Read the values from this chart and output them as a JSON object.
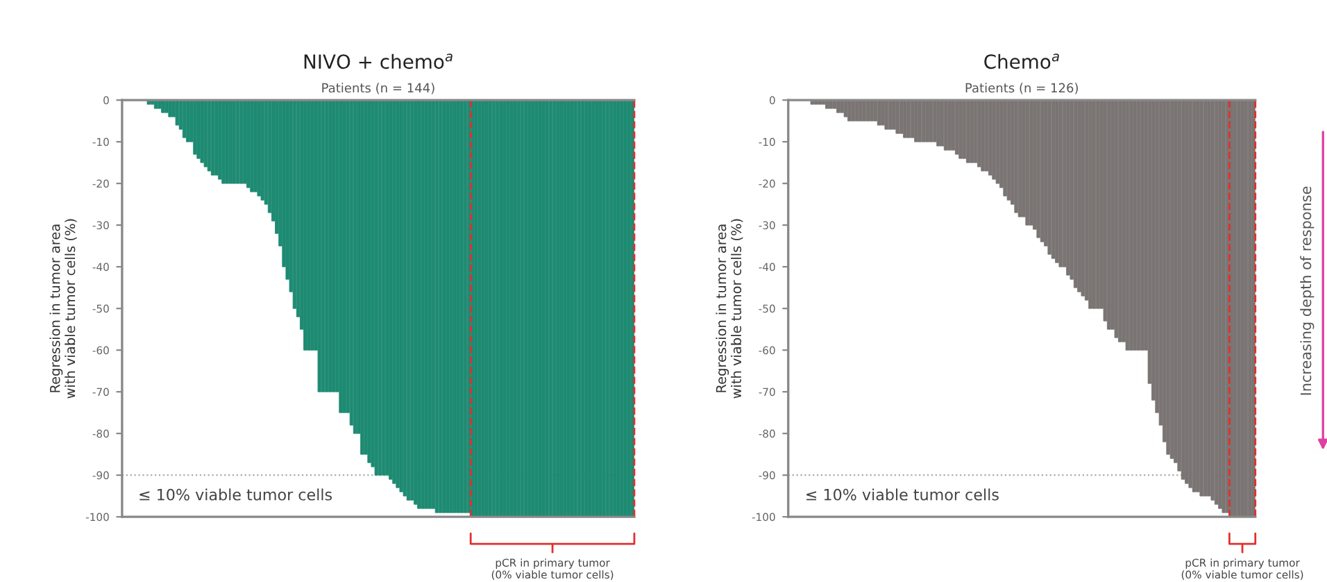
{
  "chart_data": [
    {
      "type": "bar",
      "title": "NIVO + chemo$^{a}$",
      "subtitle": "Patients (n = 144)",
      "ylabel": "Regression in tumor area\nwith viable tumor cells (%)",
      "color": "#1e8a72",
      "tick_labels": "y",
      "categories": [
        null,
        null,
        null,
        null,
        null,
        null,
        null,
        null,
        null,
        null,
        null,
        null,
        null,
        null,
        null,
        null,
        null,
        null,
        null,
        null,
        null,
        null,
        null,
        null,
        null,
        null,
        null,
        null,
        null,
        null,
        null,
        null,
        null,
        null,
        null,
        null,
        null,
        null,
        null,
        null,
        null,
        null,
        null,
        null,
        null,
        null,
        null,
        null,
        null,
        null,
        null,
        null,
        null,
        null,
        null,
        null,
        null,
        null,
        null,
        null,
        null,
        null,
        null,
        null,
        null,
        null,
        null,
        null,
        null,
        null,
        null,
        null,
        null,
        null,
        null,
        null,
        null,
        null,
        null,
        null,
        null,
        null,
        null,
        null,
        null,
        null,
        null,
        null,
        null,
        null,
        null,
        null,
        null,
        null,
        null,
        null,
        null,
        null,
        null,
        null,
        null,
        null,
        null,
        null,
        null,
        null,
        null,
        null,
        null,
        null,
        null,
        null,
        null,
        null,
        null,
        null,
        null,
        null,
        null,
        null,
        null,
        null,
        null,
        null,
        null,
        null,
        null,
        null,
        null,
        null,
        null,
        null,
        null,
        null,
        null,
        null,
        null,
        null,
        null,
        null,
        null,
        null,
        null,
        null
      ],
      "values": [
        0,
        0,
        0,
        0,
        0,
        0,
        0,
        -1,
        -1,
        -2,
        -2,
        -3,
        -3,
        -4,
        -4,
        -6,
        -7,
        -9,
        -10,
        -10,
        -13,
        -14,
        -15,
        -16,
        -17,
        -18,
        -18,
        -19,
        -20,
        -20,
        -20,
        -20,
        -20,
        -20,
        -20,
        -21,
        -22,
        -22,
        -23,
        -24,
        -25,
        -27,
        -29,
        -32,
        -35,
        -40,
        -43,
        -46,
        -50,
        -52,
        -55,
        -60,
        -60,
        -60,
        -60,
        -70,
        -70,
        -70,
        -70,
        -70,
        -70,
        -75,
        -75,
        -75,
        -78,
        -80,
        -80,
        -85,
        -85,
        -87,
        -88,
        -90,
        -90,
        -90,
        -90,
        -91,
        -92,
        -93,
        -94,
        -95,
        -96,
        -96,
        -97,
        -98,
        -98,
        -98,
        -98,
        -98,
        -99,
        -99,
        -99,
        -99,
        -99,
        -99,
        -99,
        -99,
        -99,
        -99,
        -100,
        -100,
        -100,
        -100,
        -100,
        -100,
        -100,
        -100,
        -100,
        -100,
        -100,
        -100,
        -100,
        -100,
        -100,
        -100,
        -100,
        -100,
        -100,
        -100,
        -100,
        -100,
        -100,
        -100,
        -100,
        -100,
        -100,
        -100,
        -100,
        -100,
        -100,
        -100,
        -100,
        -100,
        -100,
        -100,
        -100,
        -100,
        -100,
        -100,
        -100,
        -100,
        -100,
        -100,
        -100,
        -100
      ],
      "ylim": [
        -100,
        0
      ],
      "yticks": [
        0,
        -10,
        -20,
        -30,
        -40,
        -50,
        -60,
        -70,
        -80,
        -90,
        -100
      ],
      "ref_lines": [
        {
          "axis": "y",
          "value": -90,
          "label": "≤ 10% viable tumor cells",
          "color": "#aaaaaa",
          "line_style": "dotted"
        }
      ],
      "annotations": [
        "pCR in primary tumor\n(0% viable tumor cells)"
      ]
    },
    {
      "type": "bar",
      "title": "Chemo$^{a}$",
      "subtitle": "Patients (n = 126)",
      "ylabel": "Regression in tumor area\nwith viable tumor cells (%)",
      "color": "#7a7573",
      "tick_labels": "y",
      "categories": [
        null,
        null,
        null,
        null,
        null,
        null,
        null,
        null,
        null,
        null,
        null,
        null,
        null,
        null,
        null,
        null,
        null,
        null,
        null,
        null,
        null,
        null,
        null,
        null,
        null,
        null,
        null,
        null,
        null,
        null,
        null,
        null,
        null,
        null,
        null,
        null,
        null,
        null,
        null,
        null,
        null,
        null,
        null,
        null,
        null,
        null,
        null,
        null,
        null,
        null,
        null,
        null,
        null,
        null,
        null,
        null,
        null,
        null,
        null,
        null,
        null,
        null,
        null,
        null,
        null,
        null,
        null,
        null,
        null,
        null,
        null,
        null,
        null,
        null,
        null,
        null,
        null,
        null,
        null,
        null,
        null,
        null,
        null,
        null,
        null,
        null,
        null,
        null,
        null,
        null,
        null,
        null,
        null,
        null,
        null,
        null,
        null,
        null,
        null,
        null,
        null,
        null,
        null,
        null,
        null,
        null,
        null,
        null,
        null,
        null,
        null,
        null,
        null,
        null,
        null,
        null,
        null,
        null,
        null,
        null,
        null,
        null,
        null,
        null,
        null,
        null
      ],
      "values": [
        0,
        0,
        0,
        0,
        0,
        0,
        -1,
        -1,
        -1,
        -1,
        -2,
        -2,
        -2,
        -3,
        -3,
        -4,
        -5,
        -5,
        -5,
        -5,
        -5,
        -5,
        -5,
        -5,
        -6,
        -6,
        -7,
        -7,
        -7,
        -8,
        -8,
        -9,
        -9,
        -9,
        -10,
        -10,
        -10,
        -10,
        -10,
        -10,
        -11,
        -11,
        -12,
        -12,
        -12,
        -13,
        -14,
        -14,
        -15,
        -15,
        -15,
        -16,
        -17,
        -17,
        -18,
        -19,
        -20,
        -21,
        -23,
        -24,
        -25,
        -27,
        -28,
        -28,
        -30,
        -30,
        -31,
        -33,
        -34,
        -35,
        -37,
        -38,
        -39,
        -40,
        -40,
        -42,
        -43,
        -45,
        -46,
        -47,
        -48,
        -50,
        -50,
        -50,
        -50,
        -53,
        -55,
        -55,
        -57,
        -58,
        -58,
        -60,
        -60,
        -60,
        -60,
        -60,
        -60,
        -68,
        -72,
        -75,
        -78,
        -82,
        -85,
        -86,
        -87,
        -89,
        -91,
        -92,
        -93,
        -94,
        -94,
        -95,
        -95,
        -95,
        -96,
        -97,
        -98,
        -99,
        -99,
        -100,
        -100,
        -100,
        -100,
        -100,
        -100,
        -100
      ],
      "ylim": [
        -100,
        0
      ],
      "yticks": [
        0,
        -10,
        -20,
        -30,
        -40,
        -50,
        -60,
        -70,
        -80,
        -90,
        -100
      ],
      "ref_lines": [
        {
          "axis": "y",
          "value": -90,
          "label": "≤ 10% viable tumor cells",
          "color": "#aaaaaa",
          "line_style": "dotted"
        }
      ],
      "annotations": [
        "pCR in primary tumor\n(0% viable tumor cells)",
        "Increasing depth of response"
      ]
    }
  ]
}
